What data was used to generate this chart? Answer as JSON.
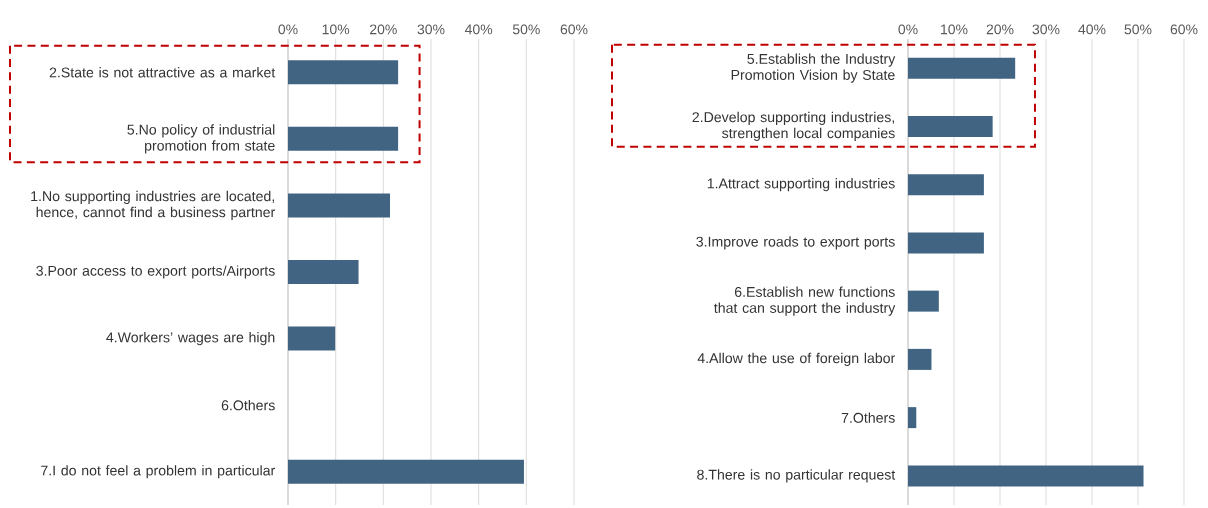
{
  "chart_data": [
    {
      "type": "bar",
      "orientation": "horizontal",
      "categories": [
        "2.State is not attractive as a market",
        "5.No policy of industrial promotion from state",
        "1.No supporting industries are located, hence, cannot find a business partner",
        "3.Poor access to export ports/Airports",
        "4.Workers’ wages are high",
        "6.Others",
        "7.I do not feel a problem in particular"
      ],
      "values": [
        23.1,
        23.1,
        21.4,
        14.8,
        9.9,
        0,
        49.5
      ],
      "color": "#406482",
      "xlim": [
        0,
        60
      ],
      "xticks": [
        {
          "value": 0,
          "label": "0%"
        },
        {
          "value": 10,
          "label": "10%"
        },
        {
          "value": 20,
          "label": "20%"
        },
        {
          "value": 30,
          "label": "30%"
        },
        {
          "value": 40,
          "label": "40%"
        },
        {
          "value": 50,
          "label": "50%"
        },
        {
          "value": 60,
          "label": "60%"
        }
      ],
      "grid": "x"
    },
    {
      "type": "bar",
      "orientation": "horizontal",
      "categories": [
        "5.Establish the Industry Promotion Vision by State",
        "2.Develop supporting industries, strengthen local companies",
        "1.Attract supporting industries",
        "3.Improve roads to export ports",
        "6.Establish new functions that can support the industry",
        "4.Allow the use of foreign labor",
        "7.Others",
        "8.There is no particular request"
      ],
      "values": [
        23.3,
        18.4,
        16.5,
        16.5,
        6.7,
        5.1,
        1.8,
        51.2
      ],
      "color": "#406482",
      "xlim": [
        0,
        60
      ],
      "xticks": [
        {
          "value": 0,
          "label": "0%"
        },
        {
          "value": 10,
          "label": "10%"
        },
        {
          "value": 20,
          "label": "20%"
        },
        {
          "value": 30,
          "label": "30%"
        },
        {
          "value": 40,
          "label": "40%"
        },
        {
          "value": 50,
          "label": "50%"
        },
        {
          "value": 60,
          "label": "60%"
        }
      ],
      "grid": "x"
    }
  ]
}
